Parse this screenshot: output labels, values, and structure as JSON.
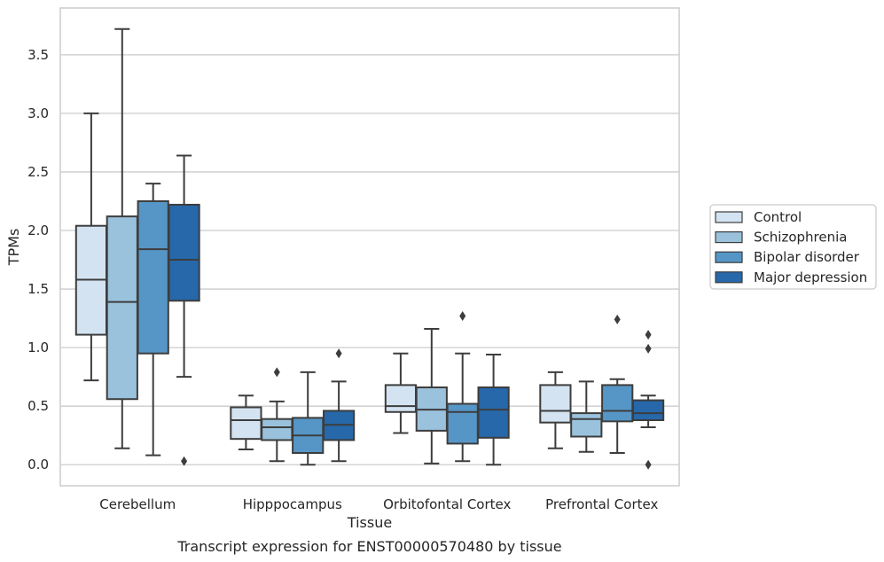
{
  "caption": "Transcript expression for ENST00000570480 by tissue",
  "chart_data": {
    "type": "boxplot",
    "xlabel": "Tissue",
    "ylabel": "TPMs",
    "ylim": [
      -0.18,
      3.9
    ],
    "yticks": [
      0.0,
      0.5,
      1.0,
      1.5,
      2.0,
      2.5,
      3.0,
      3.5
    ],
    "ytick_labels": [
      "0.0",
      "0.5",
      "1.0",
      "1.5",
      "2.0",
      "2.5",
      "3.0",
      "3.5"
    ],
    "grid": "horizontal",
    "legend_position": "right",
    "categories": [
      "Cerebellum",
      "Hipppocampus",
      "Orbitofontal Cortex",
      "Prefrontal Cortex"
    ],
    "series": [
      {
        "name": "Control",
        "color": "#d3e3f1",
        "boxes": [
          {
            "whislo": 0.72,
            "q1": 1.11,
            "med": 1.58,
            "q3": 2.04,
            "whishi": 3.0,
            "fliers": []
          },
          {
            "whislo": 0.13,
            "q1": 0.22,
            "med": 0.38,
            "q3": 0.49,
            "whishi": 0.59,
            "fliers": []
          },
          {
            "whislo": 0.27,
            "q1": 0.45,
            "med": 0.5,
            "q3": 0.68,
            "whishi": 0.95,
            "fliers": []
          },
          {
            "whislo": 0.14,
            "q1": 0.36,
            "med": 0.46,
            "q3": 0.68,
            "whishi": 0.79,
            "fliers": []
          }
        ]
      },
      {
        "name": "Schizophrenia",
        "color": "#9ac2dd",
        "boxes": [
          {
            "whislo": 0.14,
            "q1": 0.56,
            "med": 1.39,
            "q3": 2.12,
            "whishi": 3.72,
            "fliers": []
          },
          {
            "whislo": 0.03,
            "q1": 0.21,
            "med": 0.32,
            "q3": 0.39,
            "whishi": 0.54,
            "fliers": [
              0.79
            ]
          },
          {
            "whislo": 0.01,
            "q1": 0.29,
            "med": 0.47,
            "q3": 0.66,
            "whishi": 1.16,
            "fliers": []
          },
          {
            "whislo": 0.11,
            "q1": 0.24,
            "med": 0.39,
            "q3": 0.44,
            "whishi": 0.71,
            "fliers": []
          }
        ]
      },
      {
        "name": "Bipolar disorder",
        "color": "#5696c6",
        "boxes": [
          {
            "whislo": 0.08,
            "q1": 0.95,
            "med": 1.84,
            "q3": 2.25,
            "whishi": 2.4,
            "fliers": []
          },
          {
            "whislo": 0.0,
            "q1": 0.1,
            "med": 0.25,
            "q3": 0.4,
            "whishi": 0.79,
            "fliers": []
          },
          {
            "whislo": 0.03,
            "q1": 0.18,
            "med": 0.45,
            "q3": 0.52,
            "whishi": 0.95,
            "fliers": [
              1.27
            ]
          },
          {
            "whislo": 0.1,
            "q1": 0.37,
            "med": 0.46,
            "q3": 0.68,
            "whishi": 0.73,
            "fliers": [
              1.24
            ]
          }
        ]
      },
      {
        "name": "Major depression",
        "color": "#2668a9",
        "boxes": [
          {
            "whislo": 0.75,
            "q1": 1.4,
            "med": 1.75,
            "q3": 2.22,
            "whishi": 2.64,
            "fliers": [
              0.03
            ]
          },
          {
            "whislo": 0.03,
            "q1": 0.21,
            "med": 0.34,
            "q3": 0.46,
            "whishi": 0.71,
            "fliers": [
              0.95
            ]
          },
          {
            "whislo": 0.0,
            "q1": 0.23,
            "med": 0.47,
            "q3": 0.66,
            "whishi": 0.94,
            "fliers": []
          },
          {
            "whislo": 0.32,
            "q1": 0.38,
            "med": 0.44,
            "q3": 0.55,
            "whishi": 0.59,
            "fliers": [
              1.11,
              0.99,
              0.0
            ]
          }
        ]
      }
    ]
  }
}
